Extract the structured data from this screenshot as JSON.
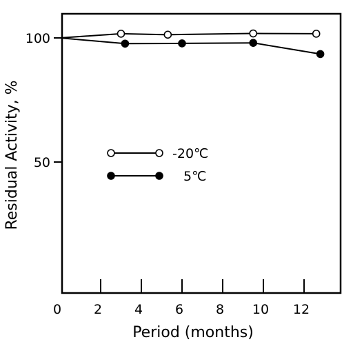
{
  "chart_data": {
    "type": "line",
    "title": "",
    "xlabel": "Period (months)",
    "ylabel": "Residual Activity, %",
    "xlim": [
      0,
      14
    ],
    "ylim": [
      0,
      105
    ],
    "x_ticks": [
      "0",
      "2",
      "4",
      "6",
      "8",
      "10",
      "12"
    ],
    "y_ticks": [
      "50",
      "100"
    ],
    "grid": false,
    "legend_position": "center-left",
    "series": [
      {
        "name": "-20℃",
        "marker": "open-circle",
        "color": "#000000",
        "x": [
          0,
          3.0,
          5.3,
          9.5,
          12.6
        ],
        "y": [
          100,
          101.7,
          101.3,
          101.8,
          101.7
        ]
      },
      {
        "name": "5℃",
        "marker": "filled-circle",
        "color": "#000000",
        "x": [
          0,
          3.2,
          6.0,
          9.5,
          12.8
        ],
        "y": [
          100,
          97.7,
          97.8,
          98.0,
          93.5
        ]
      }
    ]
  }
}
